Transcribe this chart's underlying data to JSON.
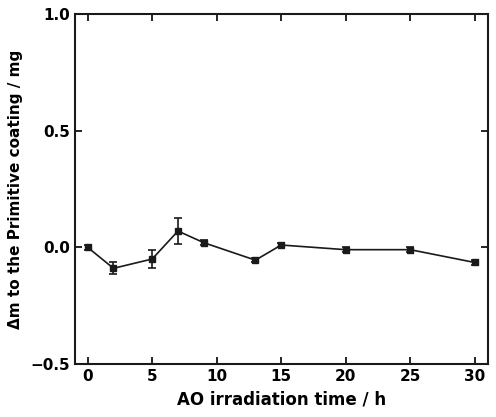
{
  "x": [
    0,
    2,
    5,
    7,
    9,
    13,
    15,
    20,
    25,
    30
  ],
  "y": [
    0.0,
    -0.09,
    -0.05,
    0.07,
    0.02,
    -0.055,
    0.01,
    -0.01,
    -0.01,
    -0.065
  ],
  "yerr": [
    0.01,
    0.025,
    0.04,
    0.055,
    0.01,
    0.01,
    0.01,
    0.01,
    0.01,
    0.01
  ],
  "xlabel": "AO irradiation time / h",
  "ylabel": "Δm to the Primitive coating / mg",
  "xlim": [
    -1,
    31
  ],
  "ylim": [
    -0.5,
    1.0
  ],
  "xticks": [
    0,
    5,
    10,
    15,
    20,
    25,
    30
  ],
  "yticks": [
    -0.5,
    0.0,
    0.5,
    1.0
  ],
  "line_color": "#1a1a1a",
  "marker": "s",
  "markersize": 5,
  "linewidth": 1.2,
  "background_color": "#ffffff"
}
